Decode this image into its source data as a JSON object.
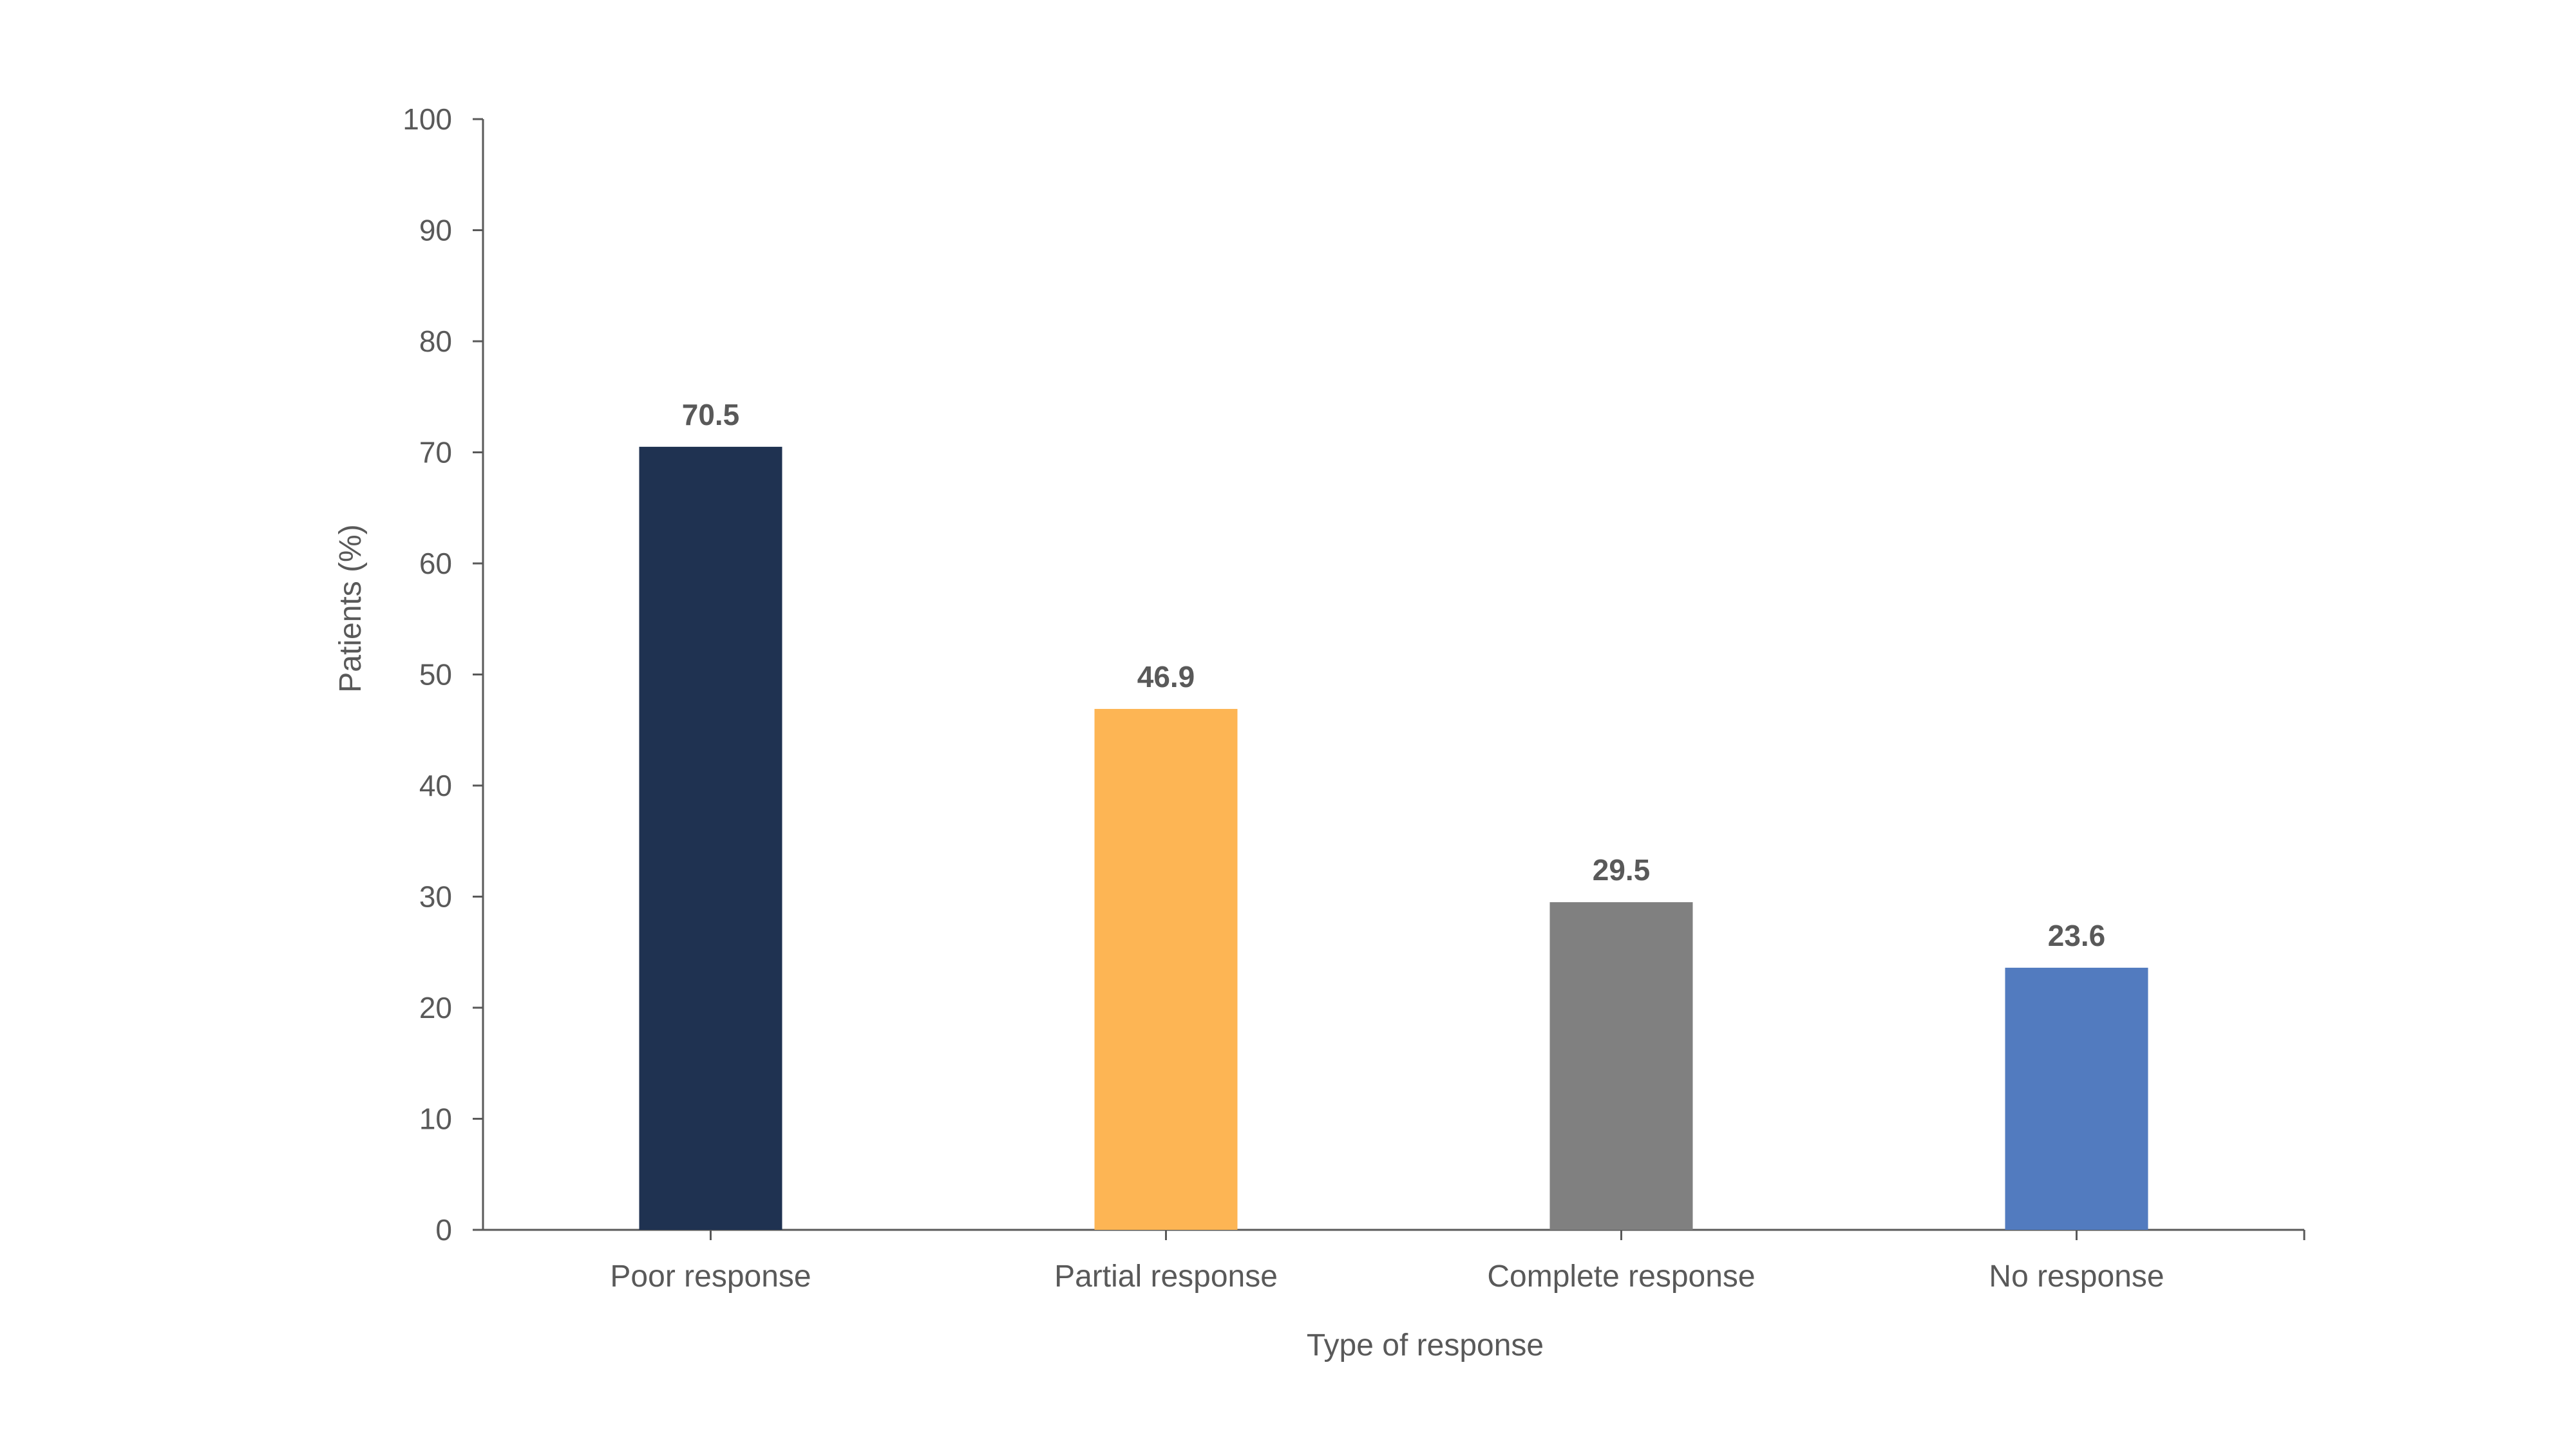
{
  "chart_data": {
    "type": "bar",
    "categories": [
      "Poor response",
      "Partial response",
      "Complete response",
      "No response"
    ],
    "values": [
      70.5,
      46.9,
      29.5,
      23.6
    ],
    "data_labels": [
      "70.5",
      "46.9",
      "29.5",
      "23.6"
    ],
    "bar_colors": [
      "#1f3251",
      "#fdb554",
      "#808080",
      "#527bbf"
    ],
    "xlabel": "Type of response",
    "ylabel": "Patients (%)",
    "ylim": [
      0,
      100
    ],
    "yticks": [
      0,
      10,
      20,
      30,
      40,
      50,
      60,
      70,
      80,
      90,
      100
    ],
    "ytick_labels": [
      "0",
      "10",
      "20",
      "30",
      "40",
      "50",
      "60",
      "70",
      "80",
      "90",
      "100"
    ],
    "grid": false,
    "legend": "none"
  }
}
